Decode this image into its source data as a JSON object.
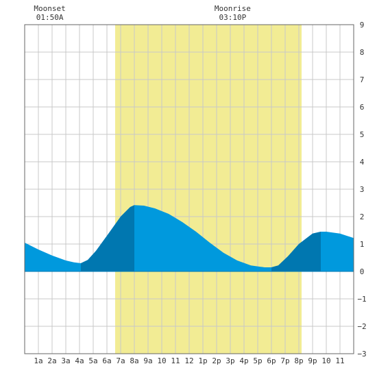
{
  "chart_data": {
    "type": "area",
    "title": "",
    "xlabel": "",
    "ylabel": "",
    "xlim": [
      0,
      24
    ],
    "ylim": [
      -3,
      9
    ],
    "grid": true,
    "moon_events": [
      {
        "label": "Moonset",
        "time": "01:50A",
        "hour": 1.83
      },
      {
        "label": "Moonrise",
        "time": "03:10P",
        "hour": 15.17
      }
    ],
    "daylight": {
      "start_hour": 6.6,
      "end_hour": 20.2,
      "color": "#f2ec94"
    },
    "x_ticks": [
      {
        "hour": 1,
        "label": "1a"
      },
      {
        "hour": 2,
        "label": "2a"
      },
      {
        "hour": 3,
        "label": "3a"
      },
      {
        "hour": 4,
        "label": "4a"
      },
      {
        "hour": 5,
        "label": "5a"
      },
      {
        "hour": 6,
        "label": "6a"
      },
      {
        "hour": 7,
        "label": "7a"
      },
      {
        "hour": 8,
        "label": "8a"
      },
      {
        "hour": 9,
        "label": "9a"
      },
      {
        "hour": 10,
        "label": "10"
      },
      {
        "hour": 11,
        "label": "11"
      },
      {
        "hour": 12,
        "label": "12"
      },
      {
        "hour": 13,
        "label": "1p"
      },
      {
        "hour": 14,
        "label": "2p"
      },
      {
        "hour": 15,
        "label": "3p"
      },
      {
        "hour": 16,
        "label": "4p"
      },
      {
        "hour": 17,
        "label": "5p"
      },
      {
        "hour": 18,
        "label": "6p"
      },
      {
        "hour": 19,
        "label": "7p"
      },
      {
        "hour": 20,
        "label": "8p"
      },
      {
        "hour": 21,
        "label": "9p"
      },
      {
        "hour": 22,
        "label": "10"
      },
      {
        "hour": 23,
        "label": "11"
      }
    ],
    "y_ticks": [
      -3,
      -2,
      -1,
      0,
      1,
      2,
      3,
      4,
      5,
      6,
      7,
      8,
      9
    ],
    "series": [
      {
        "x": [
          0,
          1,
          2,
          3,
          3.6,
          4.1,
          4.6,
          5.2,
          6,
          7,
          7.7,
          8,
          8.7,
          9.5,
          10.5,
          11.5,
          12.5,
          13.5,
          14.5,
          15.5,
          16.5,
          17.5,
          18,
          18.5,
          19.2,
          20,
          21,
          21.6,
          22,
          23,
          24
        ],
        "y": [
          1.05,
          0.8,
          0.58,
          0.4,
          0.33,
          0.3,
          0.42,
          0.75,
          1.3,
          2.0,
          2.35,
          2.42,
          2.4,
          2.3,
          2.1,
          1.8,
          1.45,
          1.05,
          0.68,
          0.4,
          0.22,
          0.15,
          0.15,
          0.22,
          0.55,
          1.0,
          1.38,
          1.45,
          1.45,
          1.38,
          1.22
        ]
      }
    ],
    "shaded_periods": [
      {
        "start_hour": 4.1,
        "end_hour": 8.0
      },
      {
        "start_hour": 18.0,
        "end_hour": 21.6
      }
    ],
    "colors": {
      "water": "#0099dd",
      "water_dark": "#0077b0",
      "grid": "#c8c8c8",
      "axis": "#666666",
      "text": "#333333"
    }
  }
}
